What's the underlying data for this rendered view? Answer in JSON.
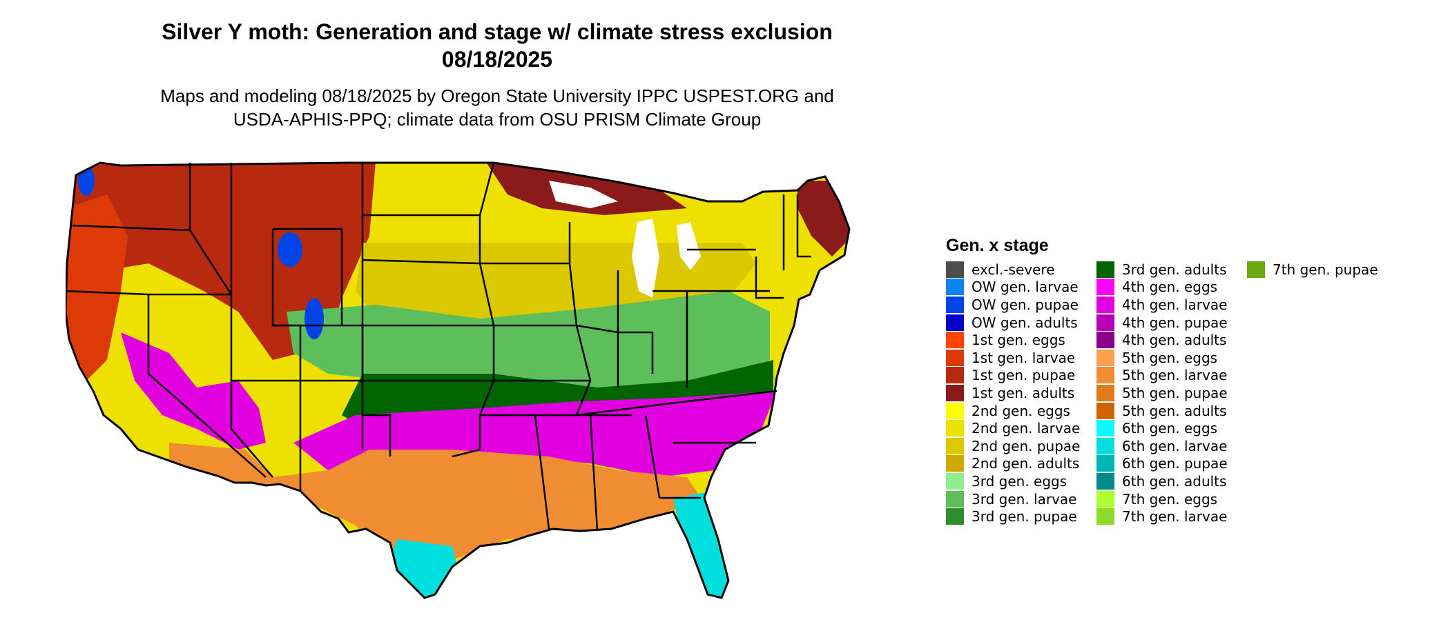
{
  "title_line1": "Silver Y moth: Generation and stage w/ climate stress exclusion",
  "title_line2": "08/18/2025",
  "subtitle_line1": "Maps and modeling 08/18/2025 by Oregon State University IPPC USPEST.ORG and",
  "subtitle_line2": "USDA-APHIS-PPQ; climate data from OSU PRISM Climate Group",
  "legend": {
    "title": "Gen. x stage",
    "items": [
      {
        "label": "excl.-severe",
        "color": "#4d4d4d"
      },
      {
        "label": "OW gen. larvae",
        "color": "#0a84f0"
      },
      {
        "label": "OW gen. pupae",
        "color": "#0044e6"
      },
      {
        "label": "OW gen. adults",
        "color": "#0000c8"
      },
      {
        "label": "1st gen. eggs",
        "color": "#ff4500"
      },
      {
        "label": "1st gen. larvae",
        "color": "#dd3a08"
      },
      {
        "label": "1st gen. pupae",
        "color": "#b82a10"
      },
      {
        "label": "1st gen. adults",
        "color": "#8b1a1a"
      },
      {
        "label": "2nd gen. eggs",
        "color": "#ffff00"
      },
      {
        "label": "2nd gen. larvae",
        "color": "#eee000"
      },
      {
        "label": "2nd gen. pupae",
        "color": "#dcc800"
      },
      {
        "label": "2nd gen. adults",
        "color": "#ccaa00"
      },
      {
        "label": "3rd gen. eggs",
        "color": "#90ee90"
      },
      {
        "label": "3rd gen. larvae",
        "color": "#5cbf5c"
      },
      {
        "label": "3rd gen. pupae",
        "color": "#2e8b2e"
      },
      {
        "label": "3rd gen. adults",
        "color": "#006400"
      },
      {
        "label": "4th gen. eggs",
        "color": "#ff00ff"
      },
      {
        "label": "4th gen. larvae",
        "color": "#e000e0"
      },
      {
        "label": "4th gen. pupae",
        "color": "#b800b8"
      },
      {
        "label": "4th gen. adults",
        "color": "#8b008b"
      },
      {
        "label": "5th gen. eggs",
        "color": "#ffa050"
      },
      {
        "label": "5th gen. larvae",
        "color": "#f08c32"
      },
      {
        "label": "5th gen. pupae",
        "color": "#e07a1a"
      },
      {
        "label": "5th gen. adults",
        "color": "#cd6600"
      },
      {
        "label": "6th gen. eggs",
        "color": "#00ffff"
      },
      {
        "label": "6th gen. larvae",
        "color": "#00dede"
      },
      {
        "label": "6th gen. pupae",
        "color": "#00b5b5"
      },
      {
        "label": "6th gen. adults",
        "color": "#008b8b"
      },
      {
        "label": "7th gen. eggs",
        "color": "#adff2f"
      },
      {
        "label": "7th gen. larvae",
        "color": "#8cdc28"
      },
      {
        "label": "7th gen. pupae",
        "color": "#6aaa10"
      }
    ]
  },
  "map": {
    "regions": [
      {
        "name": "north-rockies-1st-gen",
        "color": "#b82a10"
      },
      {
        "name": "west-coast-1st-gen",
        "color": "#dd3a08"
      },
      {
        "name": "northern-plains-2nd-gen",
        "color": "#eee000"
      },
      {
        "name": "central-plains-2nd-gen",
        "color": "#dcc800"
      },
      {
        "name": "midwest-3rd-gen",
        "color": "#5cbf5c"
      },
      {
        "name": "south-3rd-gen-adults",
        "color": "#006400"
      },
      {
        "name": "southeast-4th-gen",
        "color": "#e000e0"
      },
      {
        "name": "gulf-5th-gen",
        "color": "#f08c32"
      },
      {
        "name": "south-texas-6th-gen",
        "color": "#00dede"
      },
      {
        "name": "florida-6th-gen",
        "color": "#00dede"
      },
      {
        "name": "great-lakes-1st-gen-adults",
        "color": "#8b1a1a"
      },
      {
        "name": "ow-gen-mountains",
        "color": "#0044e6"
      },
      {
        "name": "great-lakes-water",
        "color": "#ffffff"
      }
    ]
  }
}
